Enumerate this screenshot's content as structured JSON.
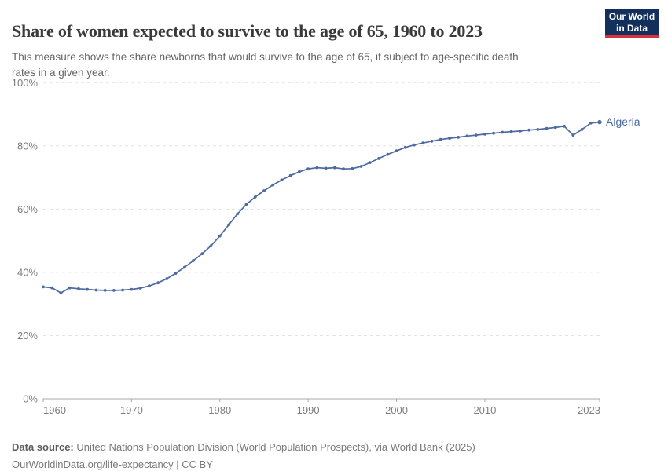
{
  "header": {
    "title": "Share of women expected to survive to the age of 65, 1960 to 2023",
    "subtitle_line1": "This measure shows the share newborns that would survive to the age of 65, if subject to age-specific death",
    "subtitle_line2": "rates in a given year.",
    "logo": {
      "line1": "Our World",
      "line2": "in Data"
    }
  },
  "chart_data": {
    "type": "line",
    "title": "Share of women expected to survive to the age of 65, 1960 to 2023",
    "xlim": [
      1960,
      2023
    ],
    "ylim": [
      0,
      100
    ],
    "x_ticks": [
      1960,
      1970,
      1980,
      1990,
      2000,
      2010,
      2023
    ],
    "y_ticks": [
      0,
      20,
      40,
      60,
      80,
      100
    ],
    "y_tick_suffix": "%",
    "grid": "horizontal-dashed",
    "legend_position": "end-of-line-label",
    "series": [
      {
        "name": "Algeria",
        "color": "#4c6aa3",
        "years": [
          1960,
          1961,
          1962,
          1963,
          1964,
          1965,
          1966,
          1967,
          1968,
          1969,
          1970,
          1971,
          1972,
          1973,
          1974,
          1975,
          1976,
          1977,
          1978,
          1979,
          1980,
          1981,
          1982,
          1983,
          1984,
          1985,
          1986,
          1987,
          1988,
          1989,
          1990,
          1991,
          1992,
          1993,
          1994,
          1995,
          1996,
          1997,
          1998,
          1999,
          2000,
          2001,
          2002,
          2003,
          2004,
          2005,
          2006,
          2007,
          2008,
          2009,
          2010,
          2011,
          2012,
          2013,
          2014,
          2015,
          2016,
          2017,
          2018,
          2019,
          2020,
          2021,
          2022,
          2023
        ],
        "values": [
          35.4,
          35.1,
          33.5,
          35.1,
          34.8,
          34.6,
          34.4,
          34.3,
          34.3,
          34.4,
          34.6,
          35.0,
          35.7,
          36.7,
          38.0,
          39.7,
          41.6,
          43.7,
          45.9,
          48.4,
          51.5,
          55.0,
          58.5,
          61.5,
          63.8,
          65.8,
          67.6,
          69.2,
          70.6,
          71.8,
          72.7,
          73.1,
          72.9,
          73.1,
          72.7,
          72.8,
          73.5,
          74.7,
          76.0,
          77.3,
          78.4,
          79.5,
          80.3,
          80.9,
          81.5,
          82.0,
          82.4,
          82.7,
          83.1,
          83.4,
          83.7,
          84.0,
          84.3,
          84.5,
          84.7,
          85.0,
          85.2,
          85.5,
          85.8,
          86.2,
          83.4,
          85.2,
          87.2,
          87.5
        ]
      }
    ]
  },
  "footer": {
    "source_label": "Data source:",
    "source_text": " United Nations Population Division (World Population Prospects), via World Bank (2025)",
    "link_line": "OurWorldinData.org/life-expectancy | CC BY"
  },
  "colors": {
    "line": "#4c6aa3",
    "grid": "#e3e3e3",
    "axis": "#a8a8a8",
    "tick_label": "#7d7d7d",
    "logo_navy": "#12305b",
    "logo_red": "#d7333f"
  }
}
